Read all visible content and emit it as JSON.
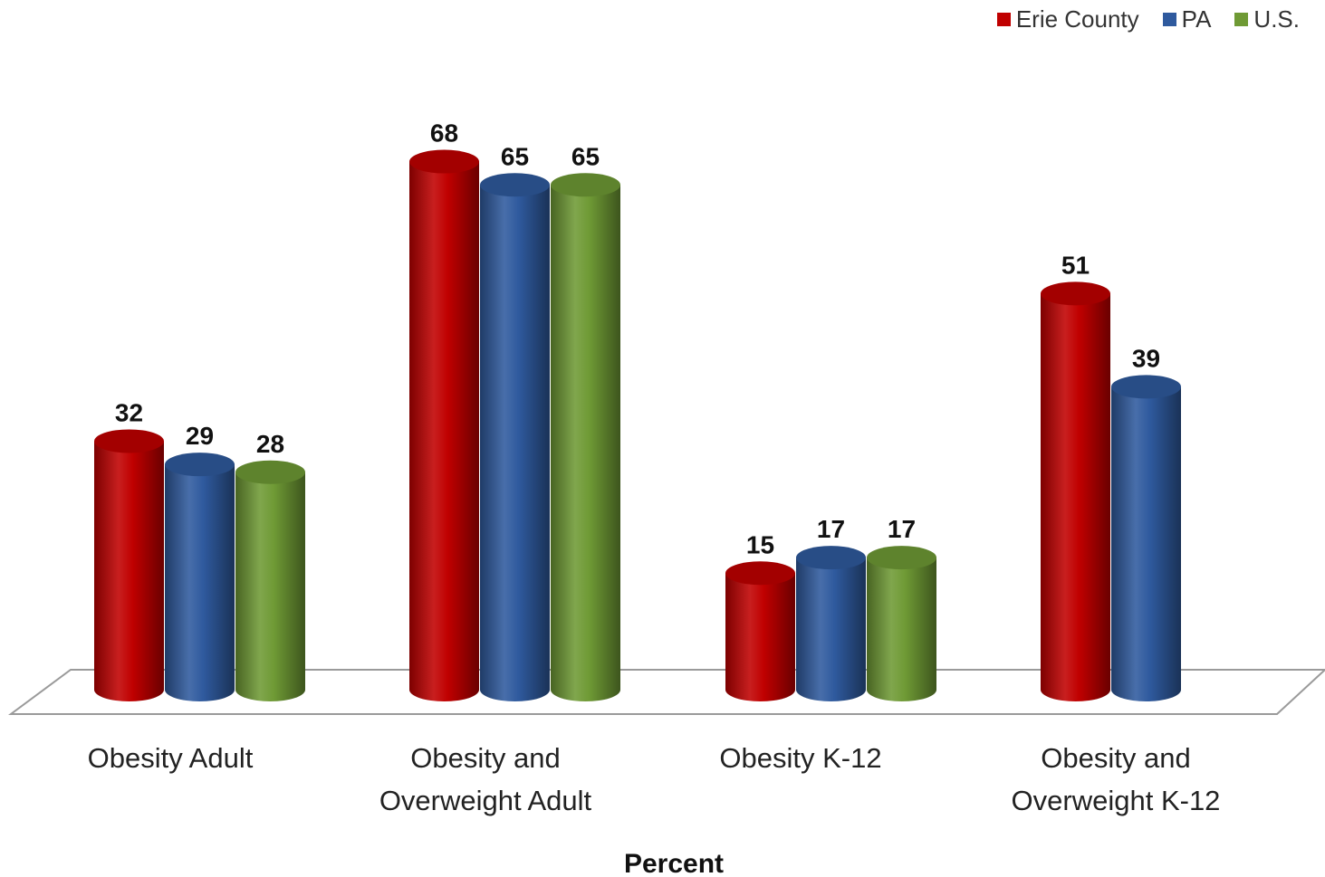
{
  "chart_data": {
    "type": "bar",
    "categories": [
      [
        "Obesity Adult"
      ],
      [
        "Obesity and",
        "Overweight Adult"
      ],
      [
        "Obesity K-12"
      ],
      [
        "Obesity and",
        "Overweight K-12"
      ]
    ],
    "series": [
      {
        "name": "Erie County",
        "color": "#c00000",
        "values": [
          32,
          68,
          15,
          51
        ]
      },
      {
        "name": "PA",
        "color": "#2f5a9e",
        "values": [
          29,
          65,
          17,
          39
        ]
      },
      {
        "name": "U.S.",
        "color": "#6f9a35",
        "values": [
          28,
          65,
          17,
          null
        ]
      }
    ],
    "xlabel": "Percent",
    "legend_position": "top-right",
    "grid": false
  }
}
